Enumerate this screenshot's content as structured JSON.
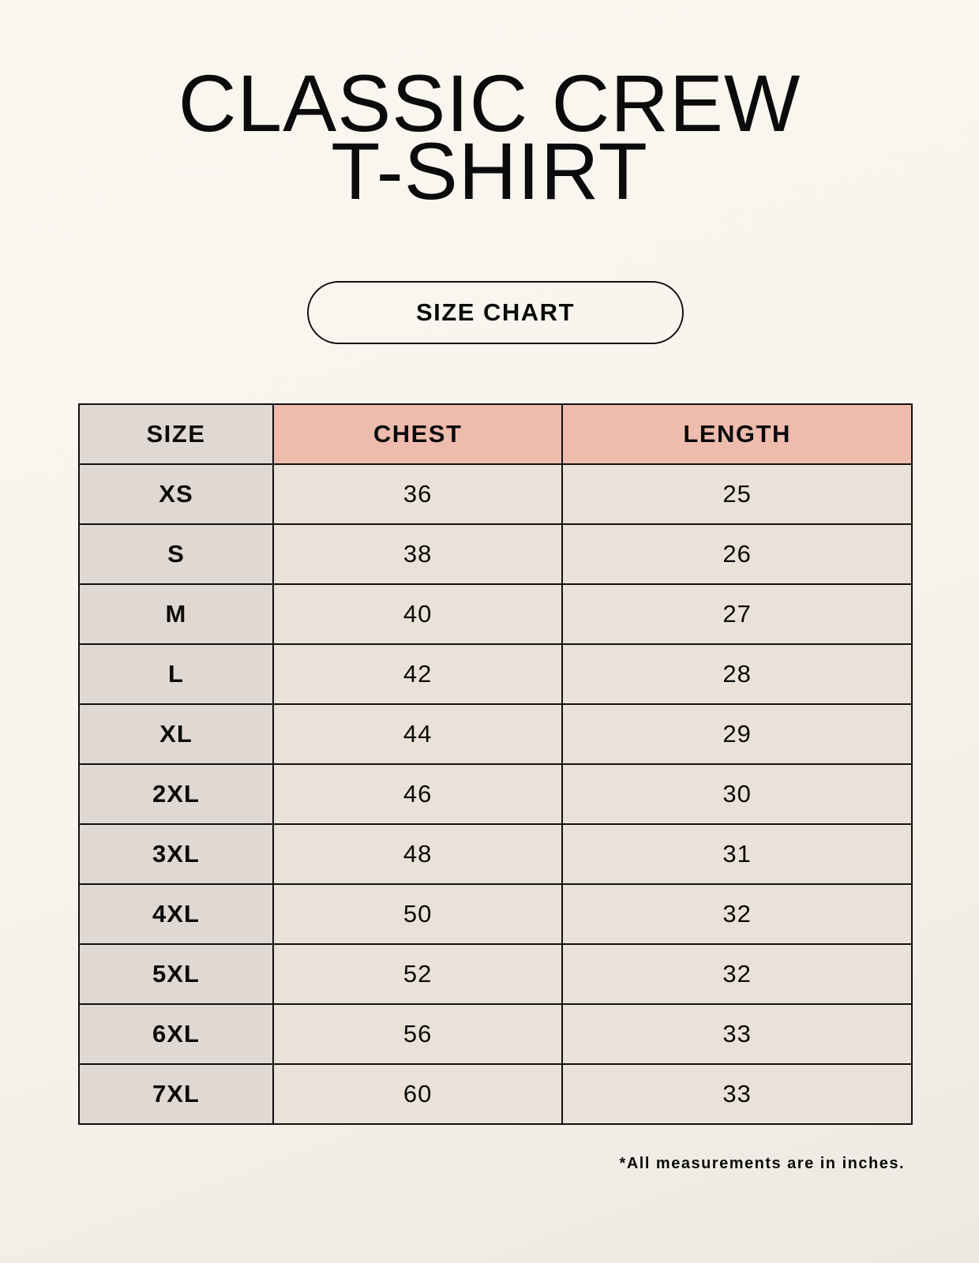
{
  "title": {
    "line1": "CLASSIC CREW",
    "line2": "T-SHIRT"
  },
  "badge": "SIZE CHART",
  "table": {
    "headers": [
      "SIZE",
      "CHEST",
      "LENGTH"
    ],
    "rows": [
      [
        "XS",
        "36",
        "25"
      ],
      [
        "S",
        "38",
        "26"
      ],
      [
        "M",
        "40",
        "27"
      ],
      [
        "L",
        "42",
        "28"
      ],
      [
        "XL",
        "44",
        "29"
      ],
      [
        "2XL",
        "46",
        "30"
      ],
      [
        "3XL",
        "48",
        "31"
      ],
      [
        "4XL",
        "50",
        "32"
      ],
      [
        "5XL",
        "52",
        "32"
      ],
      [
        "6XL",
        "56",
        "33"
      ],
      [
        "7XL",
        "60",
        "33"
      ]
    ]
  },
  "footnote": "*All measurements are in inches.",
  "colors": {
    "size_column": "#e0d8d2",
    "header_accent": "#eebcad",
    "value_cells": "#eae2d8",
    "background": "#f8f5ee"
  }
}
